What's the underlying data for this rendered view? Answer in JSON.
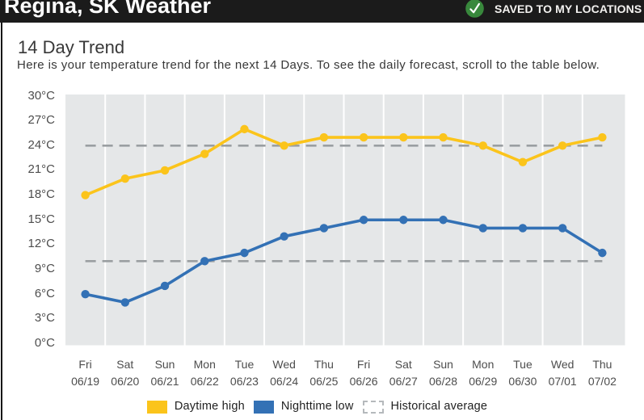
{
  "header": {
    "title": "Regina, SK Weather",
    "saved_label": "SAVED TO MY LOCATIONS",
    "colors": {
      "bar_bg": "#1b1b1b",
      "check_green": "#38883c",
      "check_mark": "#ffffff",
      "text": "#ffffff"
    }
  },
  "section": {
    "title": "14 Day Trend",
    "subtitle": "Here is your temperature trend for the next 14 Days. To see the daily forecast, scroll to the table below."
  },
  "chart_data": {
    "type": "line",
    "title": "14 Day Trend",
    "ylabel": "",
    "xlabel": "",
    "unit": "°C",
    "ylim": [
      0,
      30
    ],
    "y_tick_step": 3,
    "y_ticks": [
      {
        "value": 0,
        "label": "0°C"
      },
      {
        "value": 3,
        "label": "3°C"
      },
      {
        "value": 6,
        "label": "6°C"
      },
      {
        "value": 9,
        "label": "9°C"
      },
      {
        "value": 12,
        "label": "12°C"
      },
      {
        "value": 15,
        "label": "15°C"
      },
      {
        "value": 18,
        "label": "18°C"
      },
      {
        "value": 21,
        "label": "21°C"
      },
      {
        "value": 24,
        "label": "24°C"
      },
      {
        "value": 27,
        "label": "27°C"
      },
      {
        "value": 30,
        "label": "30°C"
      }
    ],
    "categories": [
      {
        "day": "Fri",
        "date": "06/19"
      },
      {
        "day": "Sat",
        "date": "06/20"
      },
      {
        "day": "Sun",
        "date": "06/21"
      },
      {
        "day": "Mon",
        "date": "06/22"
      },
      {
        "day": "Tue",
        "date": "06/23"
      },
      {
        "day": "Wed",
        "date": "06/24"
      },
      {
        "day": "Thu",
        "date": "06/25"
      },
      {
        "day": "Fri",
        "date": "06/26"
      },
      {
        "day": "Sat",
        "date": "06/27"
      },
      {
        "day": "Sun",
        "date": "06/28"
      },
      {
        "day": "Mon",
        "date": "06/29"
      },
      {
        "day": "Tue",
        "date": "06/30"
      },
      {
        "day": "Wed",
        "date": "07/01"
      },
      {
        "day": "Thu",
        "date": "07/02"
      }
    ],
    "series": [
      {
        "name": "Daytime high",
        "color": "#fbc41b",
        "values": [
          18,
          20,
          21,
          23,
          26,
          24,
          25,
          25,
          25,
          25,
          24,
          22,
          24,
          25
        ]
      },
      {
        "name": "Nighttime low",
        "color": "#3371b5",
        "values": [
          6,
          5,
          7,
          10,
          11,
          13,
          14,
          15,
          15,
          15,
          14,
          14,
          14,
          11
        ]
      }
    ],
    "historical_average": {
      "label": "Historical average",
      "high": 24,
      "low": 10,
      "line_style": "dashed",
      "color": "#9a9ea1"
    },
    "legend": [
      {
        "label": "Daytime high",
        "swatch": "solid",
        "color": "#fbc41b"
      },
      {
        "label": "Nighttime low",
        "swatch": "solid",
        "color": "#3371b5"
      },
      {
        "label": "Historical average",
        "swatch": "dashed",
        "color": "#b5b9bc"
      }
    ],
    "plot_bg": "#e5e7e8",
    "grid": "vertical-white",
    "legend_position": "bottom-center"
  }
}
